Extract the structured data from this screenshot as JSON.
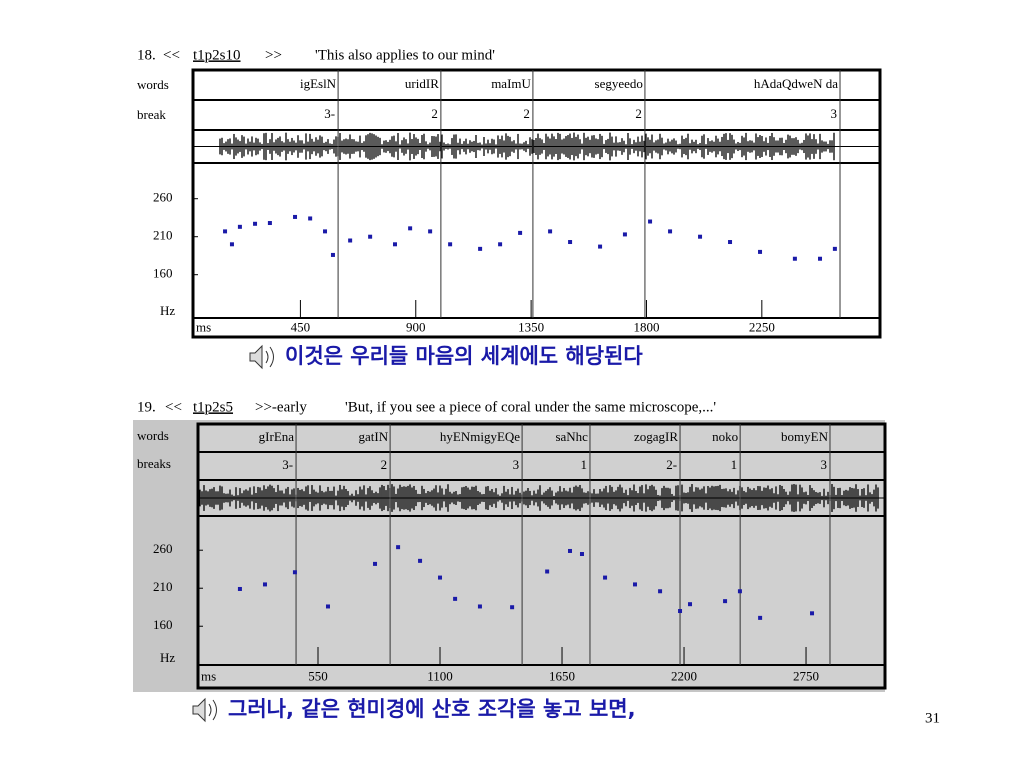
{
  "slide": {
    "page_number": "31",
    "panels": [
      {
        "number": "18.",
        "open": "<<",
        "id": "t1p2s10",
        "close": ">>",
        "gloss": "'This also applies to our mind'",
        "row_labels": {
          "words": "words",
          "breaks": "break",
          "hz": "Hz",
          "ms": "ms"
        },
        "words": [
          "igEslN",
          "uridIR",
          "maImU",
          "segyeedo",
          "hAdaQdweN da"
        ],
        "breaks": [
          "3-",
          "2",
          "2",
          "2",
          "3"
        ],
        "word_ends": [
          597,
          998,
          1357,
          1794,
          2555
        ],
        "xlim": [
          31,
          2711
        ],
        "xticks": [
          450,
          900,
          1350,
          1800,
          2250
        ],
        "ylim": [
          103,
          307
        ],
        "yticks": [
          260,
          210,
          160
        ],
        "pitch": {
          "x": [
            156,
            183,
            214,
            273,
            331,
            429,
            488,
            546,
            577,
            644,
            722,
            819,
            878,
            956,
            1034,
            1151,
            1229,
            1307,
            1424,
            1502,
            1619,
            1716,
            1814,
            1892,
            2009,
            2126,
            2243,
            2379,
            2477,
            2535
          ],
          "y": [
            217,
            200,
            223,
            227,
            228,
            236,
            234,
            217,
            186,
            205,
            210,
            200,
            221,
            217,
            200,
            194,
            200,
            215,
            217,
            203,
            197,
            213,
            230,
            217,
            210,
            203,
            190,
            181,
            181,
            194
          ]
        },
        "caption": "이것은 우리들 마음의 세계에도 해당된다"
      },
      {
        "number": "19.",
        "open": "<<",
        "id": "t1p2s5",
        "close": ">>-early",
        "gloss": "'But, if you see a piece of coral under the same microscope,...'",
        "row_labels": {
          "words": "words",
          "breaks": "breaks",
          "hz": "Hz",
          "ms": "ms"
        },
        "words": [
          "gIrEna",
          "gatIN",
          "hyENmigyEQe",
          "saNhc",
          "zogagIR",
          "noko",
          "bomyEN"
        ],
        "breaks": [
          "3-",
          "2",
          "3",
          "1",
          "2-",
          "1",
          "3"
        ],
        "word_ends": [
          451,
          875,
          1470,
          1776,
          2182,
          2453,
          2858
        ],
        "xlim": [
          9,
          3106
        ],
        "xticks": [
          550,
          1100,
          1650,
          2200,
          2750
        ],
        "ylim": [
          109,
          305
        ],
        "yticks": [
          260,
          210,
          160
        ],
        "pitch": {
          "x": [
            198,
            311,
            446,
            595,
            807,
            911,
            1010,
            1100,
            1168,
            1280,
            1425,
            1583,
            1686,
            1740,
            1844,
            1979,
            2092,
            2182,
            2227,
            2385,
            2452,
            2543,
            2777
          ],
          "y": [
            209,
            215,
            231,
            186,
            242,
            264,
            246,
            224,
            196,
            186,
            185,
            232,
            259,
            255,
            224,
            215,
            206,
            180,
            189,
            193,
            206,
            171,
            177
          ]
        },
        "caption": "그러나, 같은 현미경에 산호 조각을 놓고 보면,"
      }
    ]
  }
}
